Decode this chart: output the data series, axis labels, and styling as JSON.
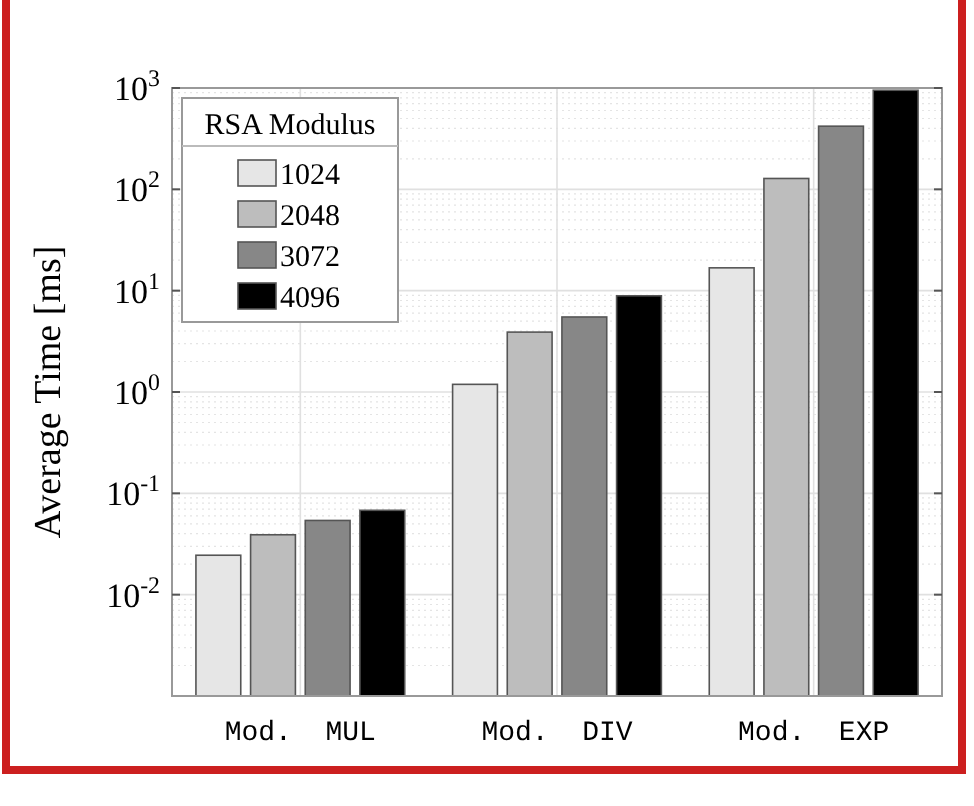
{
  "chart_data": {
    "type": "bar",
    "ylabel": "Average Time [ms]",
    "legend_title": "RSA Modulus",
    "categories": [
      "Mod.  MUL",
      "Mod.  DIV",
      "Mod.  EXP"
    ],
    "series": [
      {
        "name": "1024",
        "color": "#e6e6e6",
        "values": [
          0.0245,
          1.19,
          16.8
        ]
      },
      {
        "name": "2048",
        "color": "#bdbdbd",
        "values": [
          0.039,
          3.9,
          128
        ]
      },
      {
        "name": "3072",
        "color": "#878787",
        "values": [
          0.054,
          5.5,
          420
        ]
      },
      {
        "name": "4096",
        "color": "#000000",
        "values": [
          0.068,
          8.9,
          950
        ]
      }
    ],
    "log": "y",
    "ylim": [
      0.001,
      1000
    ],
    "yticks": [
      {
        "value": 0.01,
        "label": "10$^{-2}$"
      },
      {
        "value": 0.1,
        "label": "10$^{-1}$"
      },
      {
        "value": 1,
        "label": "10$^{0}$"
      },
      {
        "value": 10,
        "label": "10$^{1}$"
      },
      {
        "value": 100,
        "label": "10$^{2}$"
      },
      {
        "value": 1000,
        "label": "10$^{3}$"
      }
    ],
    "grid": true,
    "legend": "top left"
  }
}
